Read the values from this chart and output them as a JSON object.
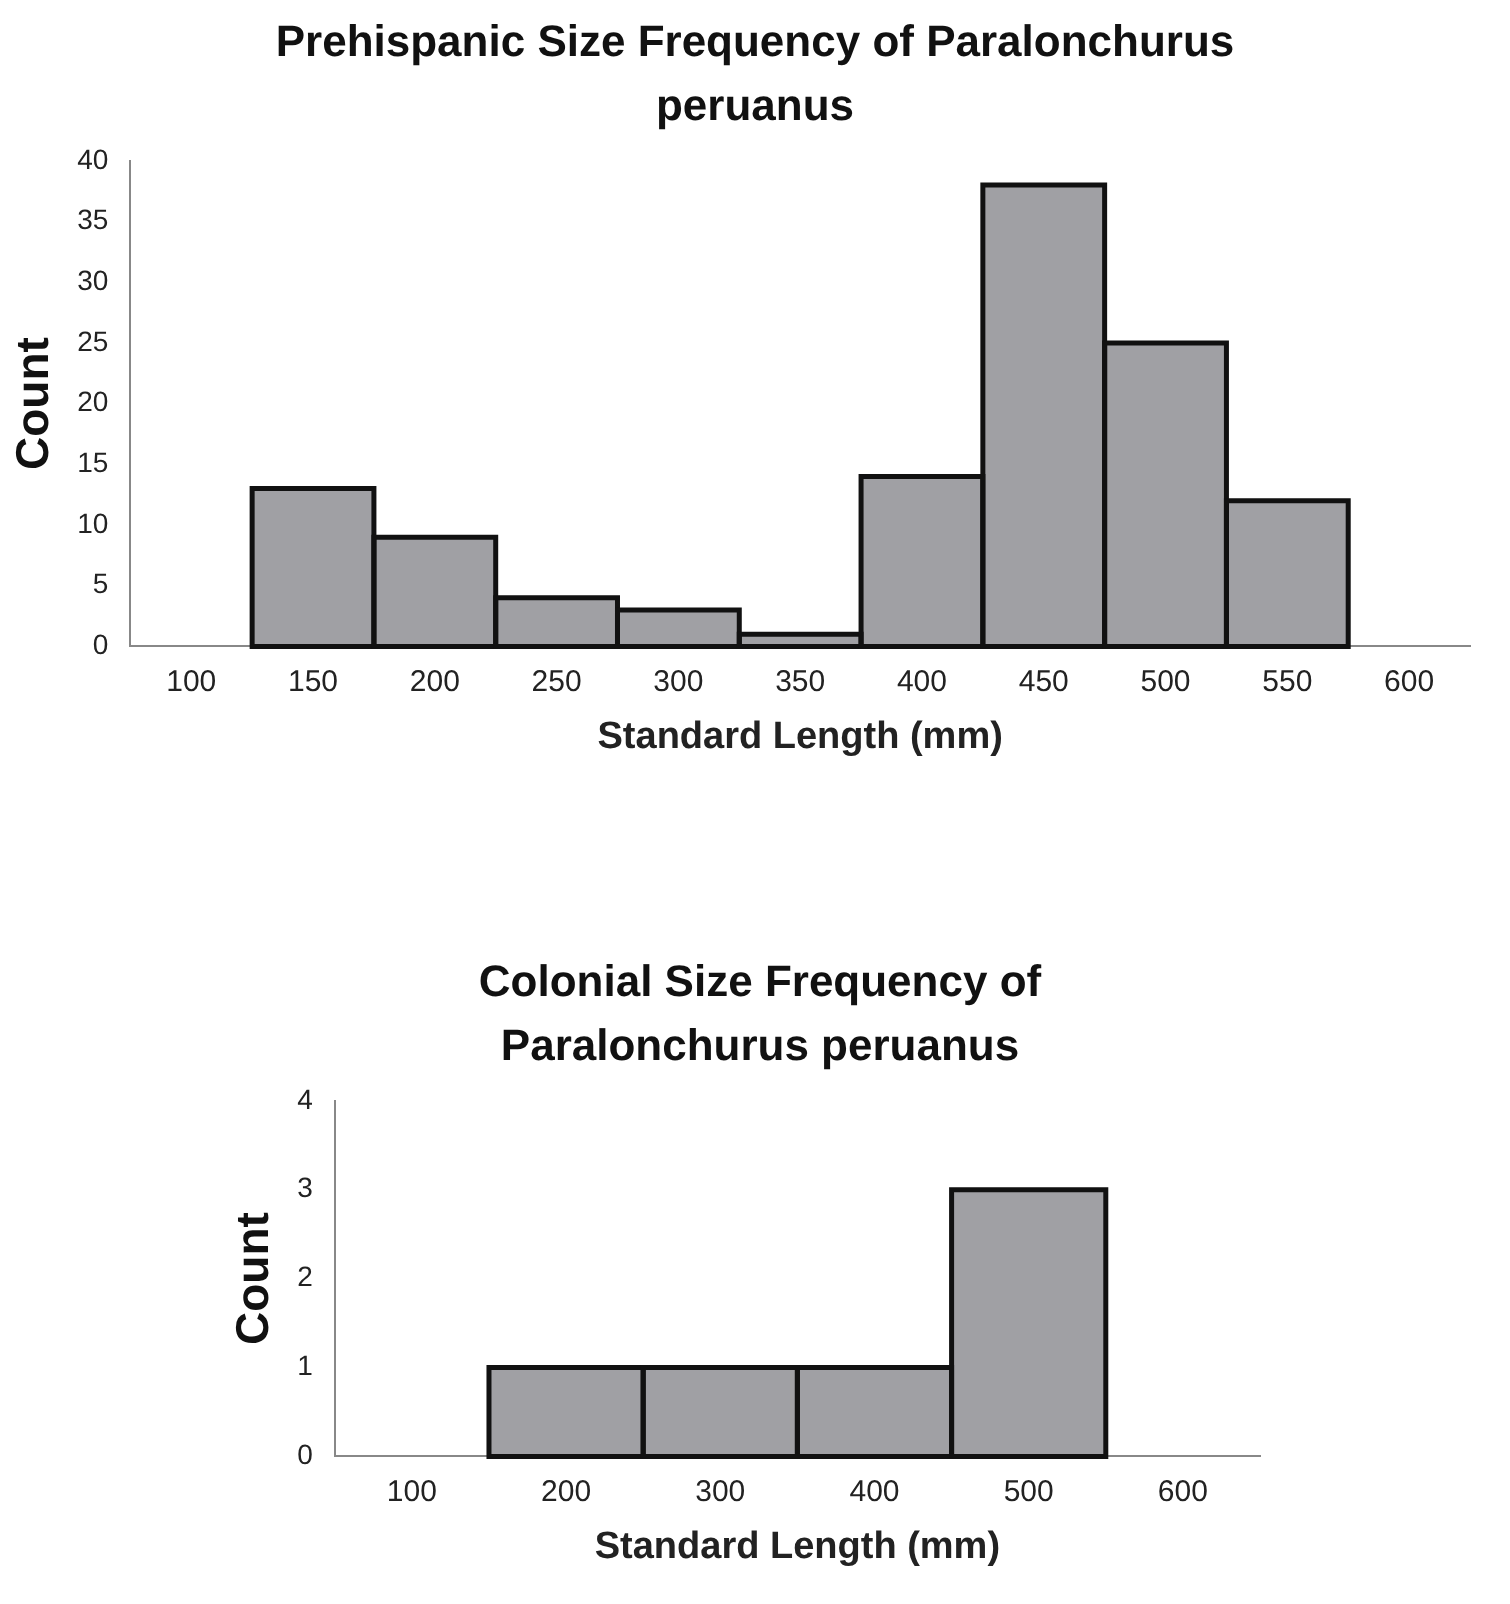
{
  "chart_data": [
    {
      "type": "bar",
      "title": "Prehispanic Size Frequency of Paralonchurus peruanus",
      "xlabel": "Standard Length (mm)",
      "ylabel": "Count",
      "categories": [
        "100",
        "150",
        "200",
        "250",
        "300",
        "350",
        "400",
        "450",
        "500",
        "550",
        "600"
      ],
      "values": [
        null,
        13,
        9,
        4,
        3,
        1,
        14,
        38,
        25,
        12,
        null
      ],
      "color": "#a0a0a4",
      "ylim": [
        0,
        40
      ],
      "yticks": [
        0,
        5,
        10,
        15,
        20,
        25,
        30,
        35,
        40
      ],
      "grid": false
    },
    {
      "type": "bar",
      "title": "Colonial Size Frequency of Paralonchurus peruanus",
      "xlabel": "Standard Length (mm)",
      "ylabel": "Count",
      "categories": [
        "100",
        "200",
        "300",
        "400",
        "500",
        "600"
      ],
      "values": [
        null,
        1,
        1,
        1,
        3,
        null
      ],
      "color": "#a0a0a4",
      "ylim": [
        0,
        4
      ],
      "yticks": [
        0,
        1,
        2,
        3,
        4
      ],
      "grid": false
    }
  ]
}
